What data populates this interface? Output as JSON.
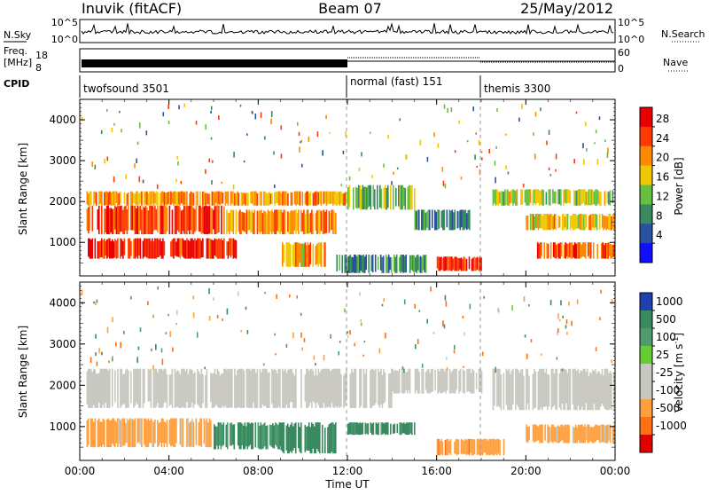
{
  "header": {
    "station": "Inuvik (fitACF)",
    "beam": "Beam 07",
    "date": "25/May/2012"
  },
  "top_panels": {
    "nsky_label": "N.Sky",
    "nsearch_label": "N.Search",
    "left_ticks_top": [
      "10^5",
      "10^0"
    ],
    "right_ticks_top": [
      "10^5",
      "10^0"
    ],
    "freq_label_1": "Freq.",
    "freq_label_2": "[MHz]",
    "freq_ticks": [
      "18",
      "8"
    ],
    "nave_label": "Nave",
    "nave_ticks": [
      "60",
      "0"
    ],
    "cpid_label": "CPID",
    "modes": [
      {
        "name": "twofsound 3501",
        "start_hour": 0,
        "end_hour": 12
      },
      {
        "name": "normal (fast) 151",
        "start_hour": 12,
        "end_hour": 18
      },
      {
        "name": "themis 3300",
        "start_hour": 18,
        "end_hour": 24
      }
    ]
  },
  "axes": {
    "xlabel": "Time UT",
    "ylabel": "Slant Range [km]",
    "x_ticks": [
      "00:00",
      "04:00",
      "08:00",
      "12:00",
      "16:00",
      "20:00",
      "00:00"
    ],
    "y_ticks": [
      "1000",
      "2000",
      "3000",
      "4000"
    ]
  },
  "colorbars": {
    "power_label": "Power [dB]",
    "power_ticks": [
      "28",
      "24",
      "20",
      "16",
      "12",
      "8",
      "4"
    ],
    "power_colors": [
      "#e80000",
      "#ff3a00",
      "#ff8a00",
      "#f0c800",
      "#66c040",
      "#3a8a60",
      "#2a50a0",
      "#1010ff"
    ],
    "velocity_label": "Velocity [m s",
    "velocity_sup": "-1",
    "velocity_label_end": "]",
    "velocity_ticks": [
      "1000",
      "500",
      "100",
      "25",
      "-25",
      "-100",
      "-500",
      "-1000"
    ],
    "velocity_colors": [
      "#2040b0",
      "#3a8a60",
      "#4f9a6f",
      "#66cc33",
      "#c8c8c0",
      "#c8c8c0",
      "#ffa040",
      "#ff7010",
      "#e00000"
    ]
  },
  "chart_data": [
    {
      "type": "heatmap",
      "name": "power",
      "xlabel": "Time UT",
      "ylabel": "Slant Range [km]",
      "xlim": [
        0,
        24
      ],
      "ylim": [
        180,
        4500
      ],
      "colorbar_label": "Power [dB]",
      "colorbar_ticks": [
        28,
        24,
        20,
        16,
        12,
        8,
        4
      ],
      "blobs": [
        {
          "t0": 0.3,
          "t1": 7.0,
          "r0": 600,
          "r1": 1100,
          "value": 28
        },
        {
          "t0": 0.3,
          "t1": 6.5,
          "r0": 1200,
          "r1": 1900,
          "value": 26
        },
        {
          "t0": 0.3,
          "t1": 12.0,
          "r0": 1900,
          "r1": 2250,
          "value": 21
        },
        {
          "t0": 6.5,
          "t1": 11.5,
          "r0": 1200,
          "r1": 1800,
          "value": 22
        },
        {
          "t0": 9.0,
          "t1": 11.0,
          "r0": 400,
          "r1": 1000,
          "value": 20
        },
        {
          "t0": 12.0,
          "t1": 15.0,
          "r0": 1800,
          "r1": 2400,
          "value": 14
        },
        {
          "t0": 15.0,
          "t1": 17.5,
          "r0": 1300,
          "r1": 1800,
          "value": 10
        },
        {
          "t0": 16.0,
          "t1": 18.0,
          "r0": 300,
          "r1": 650,
          "value": 27
        },
        {
          "t0": 18.5,
          "t1": 24.0,
          "r0": 1900,
          "r1": 2300,
          "value": 16
        },
        {
          "t0": 20.0,
          "t1": 24.0,
          "r0": 1300,
          "r1": 1700,
          "value": 20
        },
        {
          "t0": 20.5,
          "t1": 24.0,
          "r0": 600,
          "r1": 1000,
          "value": 25
        },
        {
          "t0": 11.5,
          "t1": 15.5,
          "r0": 250,
          "r1": 700,
          "value": 10
        }
      ]
    },
    {
      "type": "heatmap",
      "name": "velocity",
      "xlabel": "Time UT",
      "ylabel": "Slant Range [km]",
      "xlim": [
        0,
        24
      ],
      "ylim": [
        180,
        4500
      ],
      "colorbar_label": "Velocity [m s-1]",
      "colorbar_ticks": [
        1000,
        500,
        100,
        25,
        -25,
        -100,
        -500,
        -1000
      ],
      "blobs": [
        {
          "t0": 0.3,
          "t1": 14.0,
          "r0": 1450,
          "r1": 2400,
          "value": 0
        },
        {
          "t0": 14.0,
          "t1": 18.0,
          "r0": 1800,
          "r1": 2400,
          "value": 0
        },
        {
          "t0": 18.5,
          "t1": 24.0,
          "r0": 1400,
          "r1": 2400,
          "value": 0
        },
        {
          "t0": 0.3,
          "t1": 6.0,
          "r0": 500,
          "r1": 1200,
          "value": -150
        },
        {
          "t0": 6.0,
          "t1": 9.0,
          "r0": 450,
          "r1": 1100,
          "value": 300
        },
        {
          "t0": 9.0,
          "t1": 11.5,
          "r0": 350,
          "r1": 1100,
          "value": 400
        },
        {
          "t0": 12.0,
          "t1": 15.0,
          "r0": 800,
          "r1": 1100,
          "value": 400
        },
        {
          "t0": 16.0,
          "t1": 19.0,
          "r0": 300,
          "r1": 700,
          "value": -200
        },
        {
          "t0": 20.0,
          "t1": 24.0,
          "r0": 600,
          "r1": 1050,
          "value": -150
        }
      ]
    }
  ]
}
